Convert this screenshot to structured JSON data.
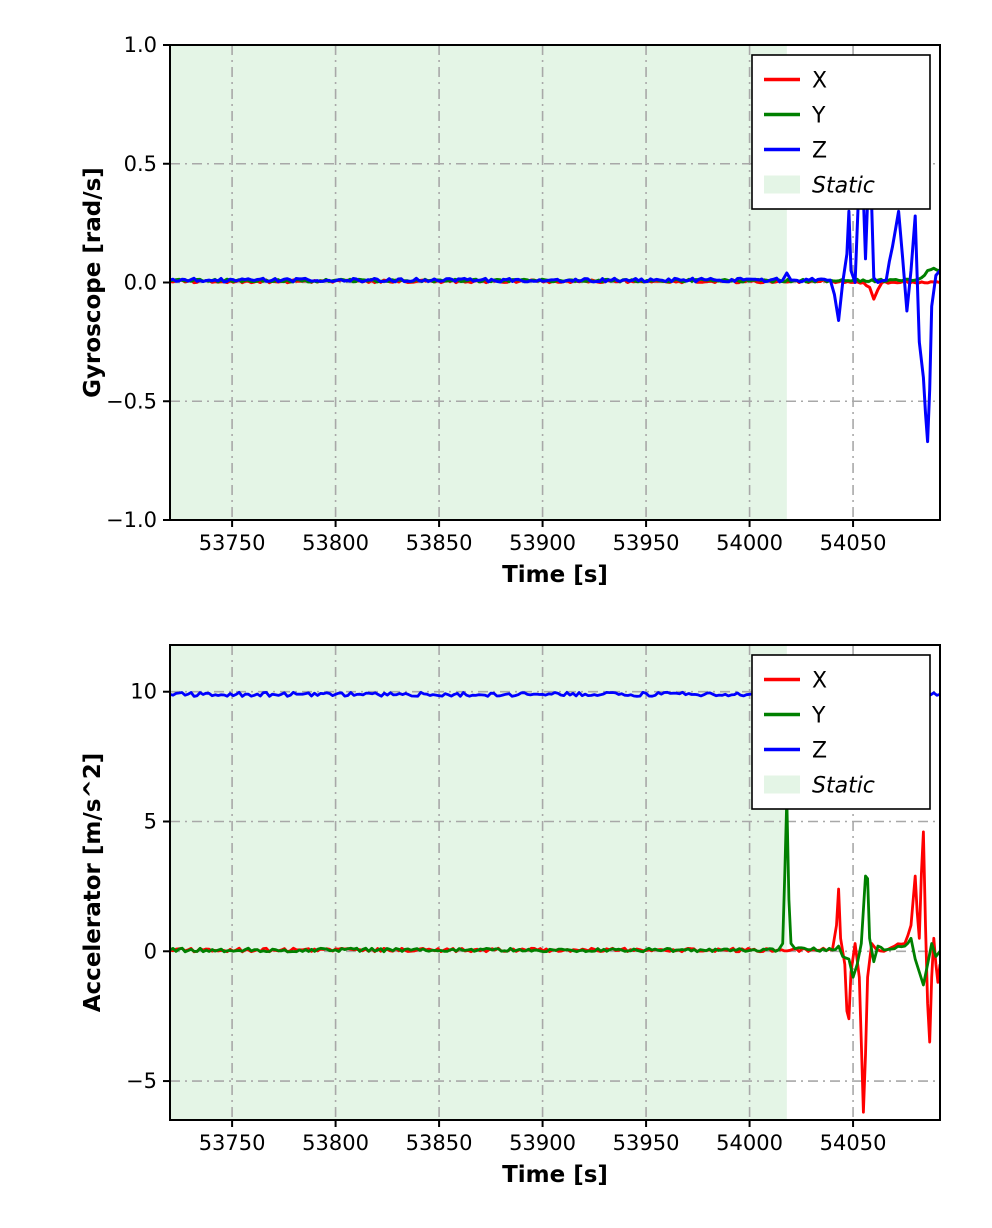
{
  "page": {
    "background": "#ffffff"
  },
  "chart_data": [
    {
      "type": "line",
      "title": "",
      "xlabel": "Time [s]",
      "ylabel": "Gyroscope [rad/s]",
      "xlim": [
        53720,
        54092
      ],
      "ylim": [
        -1.0,
        1.0
      ],
      "xticks": [
        53750,
        53800,
        53850,
        53900,
        53950,
        54000,
        54050
      ],
      "xtick_labels": [
        "53750",
        "53800",
        "53850",
        "53900",
        "53950",
        "54000",
        "54050"
      ],
      "yticks": [
        -1.0,
        -0.5,
        0.0,
        0.5,
        1.0
      ],
      "ytick_labels": [
        "−1.0",
        "−0.5",
        "0.0",
        "0.5",
        "1.0"
      ],
      "grid": {
        "on": true,
        "style": "dashdot",
        "color": "#a8a8a8",
        "dasharray": "10 5 2 5"
      },
      "linewidth": 3,
      "static_region": {
        "label": "Static",
        "from": 53720,
        "to": 54018,
        "color": "#e4f5e6"
      },
      "legend": {
        "position": "top-right",
        "entries": [
          {
            "label": "X",
            "color": "#ff0000",
            "type": "line",
            "italic": false
          },
          {
            "label": "Y",
            "color": "#008000",
            "type": "line",
            "italic": false
          },
          {
            "label": "Z",
            "color": "#0000ff",
            "type": "line",
            "italic": false
          },
          {
            "label": "Static",
            "color": "#e4f5e6",
            "type": "patch",
            "italic": true
          }
        ]
      },
      "series": [
        {
          "name": "X",
          "color": "#ff0000",
          "noise": 0.006,
          "points": [
            [
              53720,
              0.005
            ],
            [
              54040,
              0.005
            ],
            [
              54055,
              0.0
            ],
            [
              54058,
              -0.02
            ],
            [
              54060,
              -0.07
            ],
            [
              54062,
              -0.03
            ],
            [
              54064,
              0.0
            ],
            [
              54092,
              0.0
            ]
          ]
        },
        {
          "name": "Y",
          "color": "#008000",
          "noise": 0.006,
          "points": [
            [
              53720,
              0.008
            ],
            [
              54078,
              0.008
            ],
            [
              54083,
              0.02
            ],
            [
              54086,
              0.05
            ],
            [
              54089,
              0.06
            ],
            [
              54092,
              0.05
            ]
          ]
        },
        {
          "name": "Z",
          "color": "#0000ff",
          "noise": 0.008,
          "points": [
            [
              53720,
              0.01
            ],
            [
              54016,
              0.01
            ],
            [
              54018,
              0.04
            ],
            [
              54020,
              0.01
            ],
            [
              54039,
              0.01
            ],
            [
              54041,
              -0.05
            ],
            [
              54043,
              -0.16
            ],
            [
              54045,
              0.0
            ],
            [
              54047,
              0.12
            ],
            [
              54048,
              0.3
            ],
            [
              54049,
              0.05
            ],
            [
              54051,
              0.0
            ],
            [
              54053,
              0.45
            ],
            [
              54054,
              0.62
            ],
            [
              54056,
              0.1
            ],
            [
              54058,
              0.58
            ],
            [
              54059,
              0.32
            ],
            [
              54060,
              0.02
            ],
            [
              54062,
              0.0
            ],
            [
              54066,
              0.01
            ],
            [
              54072,
              0.3
            ],
            [
              54074,
              0.1
            ],
            [
              54076,
              -0.12
            ],
            [
              54078,
              0.05
            ],
            [
              54080,
              0.28
            ],
            [
              54081,
              0.02
            ],
            [
              54082,
              -0.25
            ],
            [
              54084,
              -0.4
            ],
            [
              54085,
              -0.55
            ],
            [
              54086,
              -0.67
            ],
            [
              54087,
              -0.45
            ],
            [
              54088,
              -0.1
            ],
            [
              54090,
              0.03
            ],
            [
              54092,
              0.05
            ]
          ]
        }
      ]
    },
    {
      "type": "line",
      "title": "",
      "xlabel": "Time [s]",
      "ylabel": "Accelerator [m/s^2]",
      "xlim": [
        53720,
        54092
      ],
      "ylim": [
        -6.5,
        11.8
      ],
      "xticks": [
        53750,
        53800,
        53850,
        53900,
        53950,
        54000,
        54050
      ],
      "xtick_labels": [
        "53750",
        "53800",
        "53850",
        "53900",
        "53950",
        "54000",
        "54050"
      ],
      "yticks": [
        -5,
        0,
        5,
        10
      ],
      "ytick_labels": [
        "−5",
        "0",
        "5",
        "10"
      ],
      "grid": {
        "on": true,
        "style": "dashdot",
        "color": "#a8a8a8",
        "dasharray": "10 5 2 5"
      },
      "linewidth": 2.8,
      "static_region": {
        "label": "Static",
        "from": 53720,
        "to": 54018,
        "color": "#e4f5e6"
      },
      "legend": {
        "position": "top-right",
        "entries": [
          {
            "label": "X",
            "color": "#ff0000",
            "type": "line",
            "italic": false
          },
          {
            "label": "Y",
            "color": "#008000",
            "type": "line",
            "italic": false
          },
          {
            "label": "Z",
            "color": "#0000ff",
            "type": "line",
            "italic": false
          },
          {
            "label": "Static",
            "color": "#e4f5e6",
            "type": "patch",
            "italic": true
          }
        ]
      },
      "series": [
        {
          "name": "X",
          "color": "#ff0000",
          "noise": 0.07,
          "points": [
            [
              53720,
              0.05
            ],
            [
              54040,
              0.05
            ],
            [
              54042,
              1.0
            ],
            [
              54043,
              2.4
            ],
            [
              54044,
              0.5
            ],
            [
              54046,
              -0.5
            ],
            [
              54047,
              -2.3
            ],
            [
              54048,
              -2.6
            ],
            [
              54049,
              -0.8
            ],
            [
              54051,
              0.3
            ],
            [
              54053,
              -1.0
            ],
            [
              54054,
              -3.5
            ],
            [
              54055,
              -6.2
            ],
            [
              54056,
              -4.0
            ],
            [
              54057,
              -1.0
            ],
            [
              54059,
              0.3
            ],
            [
              54061,
              0.1
            ],
            [
              54065,
              0.0
            ],
            [
              54070,
              0.2
            ],
            [
              54075,
              0.3
            ],
            [
              54078,
              1.0
            ],
            [
              54080,
              2.9
            ],
            [
              54081,
              1.5
            ],
            [
              54082,
              0.5
            ],
            [
              54083,
              3.0
            ],
            [
              54084,
              4.6
            ],
            [
              54085,
              1.0
            ],
            [
              54086,
              -2.0
            ],
            [
              54087,
              -3.5
            ],
            [
              54088,
              -1.0
            ],
            [
              54089,
              0.5
            ],
            [
              54090,
              -0.5
            ],
            [
              54091,
              -1.2
            ],
            [
              54092,
              -0.5
            ]
          ]
        },
        {
          "name": "Y",
          "color": "#008000",
          "noise": 0.07,
          "points": [
            [
              53720,
              0.05
            ],
            [
              54014,
              0.05
            ],
            [
              54016,
              0.3
            ],
            [
              54017,
              3.0
            ],
            [
              54018,
              5.9
            ],
            [
              54019,
              2.0
            ],
            [
              54020,
              0.3
            ],
            [
              54022,
              0.1
            ],
            [
              54040,
              0.05
            ],
            [
              54043,
              0.2
            ],
            [
              54045,
              -0.2
            ],
            [
              54048,
              -0.3
            ],
            [
              54050,
              -1.0
            ],
            [
              54052,
              -0.5
            ],
            [
              54054,
              0.3
            ],
            [
              54056,
              2.9
            ],
            [
              54057,
              2.8
            ],
            [
              54058,
              0.5
            ],
            [
              54060,
              -0.4
            ],
            [
              54062,
              0.2
            ],
            [
              54065,
              0.05
            ],
            [
              54070,
              0.1
            ],
            [
              54075,
              0.2
            ],
            [
              54078,
              0.5
            ],
            [
              54080,
              -0.3
            ],
            [
              54082,
              -0.8
            ],
            [
              54084,
              -1.3
            ],
            [
              54086,
              -0.5
            ],
            [
              54088,
              0.3
            ],
            [
              54090,
              -0.2
            ],
            [
              54092,
              0.0
            ]
          ]
        },
        {
          "name": "Z",
          "color": "#0000ff",
          "noise": 0.08,
          "points": [
            [
              53720,
              9.9
            ],
            [
              53800,
              9.9
            ],
            [
              53900,
              9.9
            ],
            [
              54000,
              9.9
            ],
            [
              54050,
              9.9
            ],
            [
              54092,
              9.9
            ]
          ]
        }
      ]
    }
  ]
}
